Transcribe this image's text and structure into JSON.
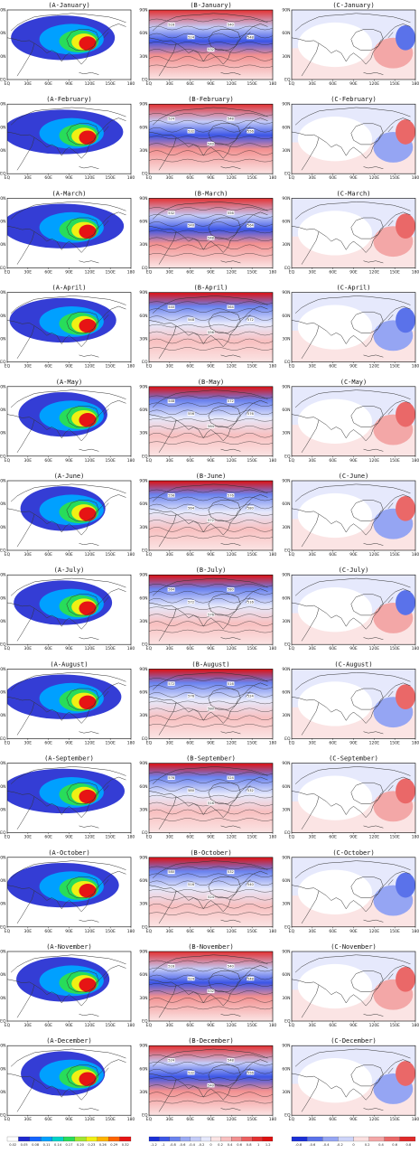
{
  "figure": {
    "columns": [
      "A",
      "B",
      "C"
    ],
    "months": [
      "January",
      "February",
      "March",
      "April",
      "May",
      "June",
      "July",
      "August",
      "September",
      "October",
      "November",
      "December"
    ],
    "panel_title_format": "({col}-{month})",
    "xticks": [
      "EQ",
      "30E",
      "60E",
      "90E",
      "120E",
      "150E",
      "180"
    ],
    "yticks": [
      "90N",
      "60N",
      "30N",
      "EQ"
    ],
    "contour_labels": [
      "516",
      "524",
      "532",
      "540",
      "548",
      "556",
      "564",
      "572",
      "576",
      "580"
    ],
    "colorbars": {
      "A": {
        "labels": [
          "0.02",
          "0.05",
          "0.08",
          "0.11",
          "0.14",
          "0.17",
          "0.20",
          "0.23",
          "0.26",
          "0.29",
          "0.32"
        ],
        "colors": [
          "#ffffff",
          "#1e28d0",
          "#1464ff",
          "#00a0ff",
          "#00d2c8",
          "#28dc5a",
          "#a0e632",
          "#f0f014",
          "#ffb400",
          "#ff6400",
          "#e61414"
        ]
      },
      "B": {
        "labels": [
          "-1.2",
          "-1",
          "-0.8",
          "-0.6",
          "-0.4",
          "-0.2",
          "0",
          "0.2",
          "0.4",
          "0.6",
          "0.8",
          "1",
          "1.2"
        ],
        "colors": [
          "#1a2fd6",
          "#3b55e6",
          "#6a82ee",
          "#9aaaf4",
          "#c4ccf8",
          "#e6e9fc",
          "#fbe4e4",
          "#f8c0c0",
          "#f29090",
          "#ec6060",
          "#e43030",
          "#de1010"
        ]
      },
      "C": {
        "labels": [
          "-0.8",
          "-0.6",
          "-0.4",
          "-0.2",
          "0",
          "0.2",
          "0.4",
          "0.6",
          "0.8"
        ],
        "colors": [
          "#1a2fd6",
          "#5a72ea",
          "#95a5f3",
          "#cdd4f9",
          "#fbe0e0",
          "#f3a7a7",
          "#ea6868",
          "#df2a2a"
        ]
      }
    },
    "colors": {
      "land_outline": "#333333",
      "panel_frame": "#000000",
      "ocean": "#ffffff"
    }
  }
}
